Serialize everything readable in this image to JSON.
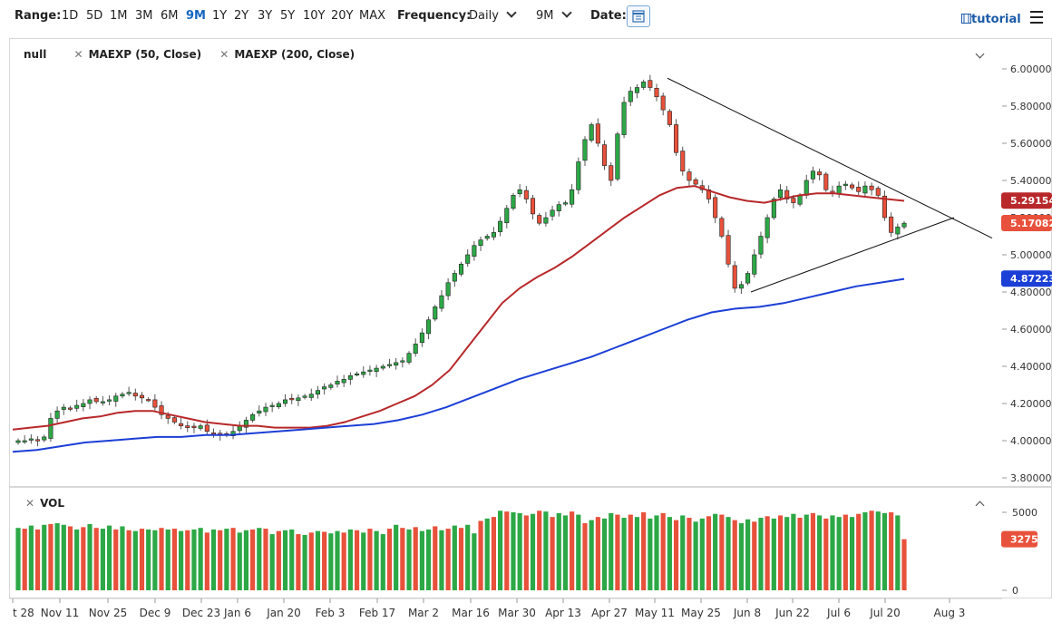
{
  "toolbar": {
    "range_label": "Range:",
    "ranges": [
      "1D",
      "5D",
      "1M",
      "3M",
      "6M",
      "9M",
      "1Y",
      "2Y",
      "3Y",
      "5Y",
      "10Y",
      "20Y",
      "MAX"
    ],
    "active_range": "9M",
    "frequency_label": "Frequency:",
    "frequency_value": "Daily",
    "period_value": "9M",
    "date_label": "Date:",
    "tutorial_label": "tutorial"
  },
  "legend": {
    "symbol": "null",
    "ind1": "MAEXP (50, Close)",
    "ind2": "MAEXP (200, Close)",
    "vol": "VOL"
  },
  "colors": {
    "up": "#2ca846",
    "down": "#e8513b",
    "ma50": "#b8282a",
    "ma200": "#1c3fd6",
    "trend": "#111111"
  },
  "chart_data": {
    "type": "candlestick",
    "title": "",
    "y_ticks": [
      "6.00000",
      "5.80000",
      "5.60000",
      "5.40000",
      "5.20000",
      "5.00000",
      "4.80000",
      "4.60000",
      "4.40000",
      "4.20000",
      "4.00000",
      "3.80000"
    ],
    "ylim": [
      3.78,
      6.05
    ],
    "x_ticks": [
      "t 28",
      "Nov 11",
      "Nov 25",
      "Dec 9",
      "Dec 23",
      "Jan 6",
      "Jan 20",
      "Feb 3",
      "Feb 17",
      "Mar 2",
      "Mar 16",
      "Mar 30",
      "Apr 13",
      "Apr 27",
      "May 11",
      "May 25",
      "Jun 8",
      "Jun 22",
      "Jul 6",
      "Jul 20",
      "Aug 3"
    ],
    "price_labels": {
      "ma50": "5.29154",
      "last": "5.17082",
      "ma200": "4.87223"
    },
    "closes": [
      4.0,
      4.0,
      4.01,
      4.0,
      4.02,
      4.12,
      4.16,
      4.18,
      4.17,
      4.19,
      4.2,
      4.22,
      4.21,
      4.21,
      4.22,
      4.24,
      4.25,
      4.26,
      4.24,
      4.23,
      4.22,
      4.18,
      4.14,
      4.12,
      4.1,
      4.08,
      4.07,
      4.07,
      4.08,
      4.05,
      4.04,
      4.03,
      4.03,
      4.05,
      4.08,
      4.11,
      4.14,
      4.16,
      4.18,
      4.19,
      4.2,
      4.22,
      4.22,
      4.23,
      4.24,
      4.25,
      4.27,
      4.29,
      4.3,
      4.32,
      4.33,
      4.35,
      4.36,
      4.37,
      4.38,
      4.39,
      4.4,
      4.41,
      4.42,
      4.43,
      4.47,
      4.52,
      4.58,
      4.65,
      4.72,
      4.78,
      4.85,
      4.9,
      4.95,
      5.0,
      5.05,
      5.08,
      5.1,
      5.12,
      5.18,
      5.25,
      5.32,
      5.35,
      5.3,
      5.22,
      5.17,
      5.2,
      5.24,
      5.27,
      5.28,
      5.35,
      5.5,
      5.62,
      5.7,
      5.6,
      5.48,
      5.4,
      5.65,
      5.82,
      5.88,
      5.9,
      5.93,
      5.9,
      5.85,
      5.78,
      5.7,
      5.55,
      5.45,
      5.4,
      5.38,
      5.35,
      5.3,
      5.2,
      5.1,
      4.95,
      4.82,
      4.84,
      4.9,
      5.0,
      5.1,
      5.2,
      5.3,
      5.35,
      5.3,
      5.28,
      5.32,
      5.4,
      5.45,
      5.43,
      5.35,
      5.33,
      5.37,
      5.38,
      5.36,
      5.34,
      5.37,
      5.35,
      5.32,
      5.2,
      5.12,
      5.15,
      5.17
    ],
    "ma50": [
      4.06,
      4.07,
      4.08,
      4.1,
      4.12,
      4.13,
      4.15,
      4.16,
      4.16,
      4.14,
      4.12,
      4.1,
      4.09,
      4.08,
      4.08,
      4.07,
      4.07,
      4.07,
      4.08,
      4.1,
      4.13,
      4.16,
      4.2,
      4.24,
      4.3,
      4.38,
      4.5,
      4.62,
      4.74,
      4.82,
      4.88,
      4.93,
      4.99,
      5.06,
      5.13,
      5.2,
      5.26,
      5.32,
      5.36,
      5.37,
      5.34,
      5.31,
      5.29,
      5.28,
      5.3,
      5.32,
      5.33,
      5.33,
      5.32,
      5.31,
      5.3,
      5.29
    ],
    "ma200": [
      3.94,
      3.95,
      3.97,
      3.99,
      4.0,
      4.01,
      4.02,
      4.02,
      4.03,
      4.03,
      4.04,
      4.05,
      4.06,
      4.07,
      4.08,
      4.09,
      4.11,
      4.14,
      4.18,
      4.23,
      4.28,
      4.33,
      4.37,
      4.41,
      4.45,
      4.5,
      4.55,
      4.6,
      4.65,
      4.69,
      4.71,
      4.72,
      4.74,
      4.77,
      4.8,
      4.83,
      4.85,
      4.87
    ],
    "volume_ticks": [
      "5000",
      "0"
    ],
    "volume_last": "3275",
    "volumes": [
      4000,
      3950,
      4150,
      3900,
      4200,
      4250,
      4300,
      4200,
      4100,
      3900,
      4050,
      4250,
      4000,
      3950,
      4150,
      3900,
      4100,
      3850,
      3800,
      3950,
      3900,
      3850,
      4000,
      3900,
      3950,
      3800,
      3850,
      3900,
      4000,
      3700,
      3900,
      3850,
      3950,
      4000,
      3700,
      3850,
      3900,
      4000,
      3950,
      3600,
      3800,
      3850,
      3900,
      3600,
      3550,
      3700,
      3800,
      3750,
      3650,
      3800,
      3700,
      3900,
      3850,
      3700,
      3950,
      3800,
      3600,
      3950,
      4200,
      4000,
      3900,
      4050,
      3800,
      3900,
      4100,
      3850,
      3950,
      4150,
      4000,
      4200,
      3650,
      4450,
      4600,
      4700,
      5100,
      5050,
      5000,
      4950,
      4800,
      4900,
      5100,
      5050,
      4700,
      4950,
      4800,
      5050,
      4850,
      4300,
      4500,
      4700,
      4600,
      4950,
      4850,
      4650,
      4850,
      4700,
      5000,
      4600,
      4800,
      4950,
      4700,
      4500,
      4800,
      4650,
      4400,
      4600,
      4750,
      4900,
      4850,
      4700,
      4500,
      4300,
      4550,
      4400,
      4650,
      4750,
      4600,
      4800,
      4700,
      4900,
      4650,
      4850,
      4950,
      4800,
      4600,
      4800,
      4700,
      4850,
      4700,
      4900,
      5000,
      5100,
      5050,
      4950,
      5000,
      4800,
      3275
    ],
    "trendlines": [
      {
        "name": "upper",
        "from": [
          "May 12",
          5.95
        ],
        "to": [
          "Aug 10",
          5.09
        ]
      },
      {
        "name": "lower",
        "from": [
          "Jun 8",
          4.8
        ],
        "to": [
          "Aug 2",
          5.2
        ]
      }
    ]
  }
}
